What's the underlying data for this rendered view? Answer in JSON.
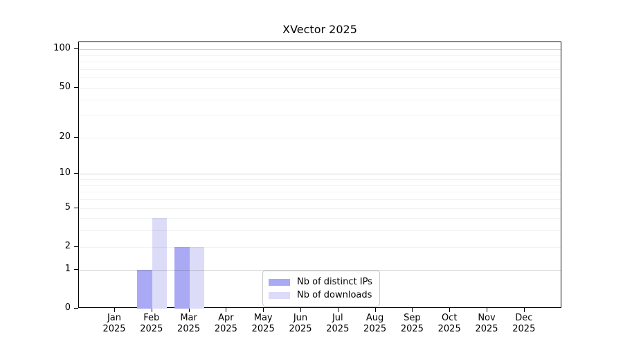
{
  "chart_data": {
    "type": "bar",
    "title": "XVector 2025",
    "categories": [
      "Jan 2025",
      "Feb 2025",
      "Mar 2025",
      "Apr 2025",
      "May 2025",
      "Jun 2025",
      "Jul 2025",
      "Aug 2025",
      "Sep 2025",
      "Oct 2025",
      "Nov 2025",
      "Dec 2025"
    ],
    "series": [
      {
        "name": "Nb of distinct IPs",
        "color": "#a9a9f4",
        "values": [
          0,
          1,
          2,
          0,
          0,
          0,
          0,
          0,
          0,
          0,
          0,
          0
        ]
      },
      {
        "name": "Nb of downloads",
        "color": "#dcdcf8",
        "values": [
          0,
          4,
          2,
          0,
          0,
          0,
          0,
          0,
          0,
          0,
          0,
          0
        ]
      }
    ],
    "yscale": "log10(1+v)",
    "y_ticks": [
      0,
      1,
      2,
      5,
      10,
      20,
      50,
      100
    ],
    "y_minor_gridlines": [
      3,
      4,
      6,
      7,
      8,
      9,
      30,
      40,
      60,
      70,
      80,
      90
    ],
    "ylim": [
      0,
      112
    ],
    "grid": "horizontal",
    "legend_position": "bottom-center"
  }
}
